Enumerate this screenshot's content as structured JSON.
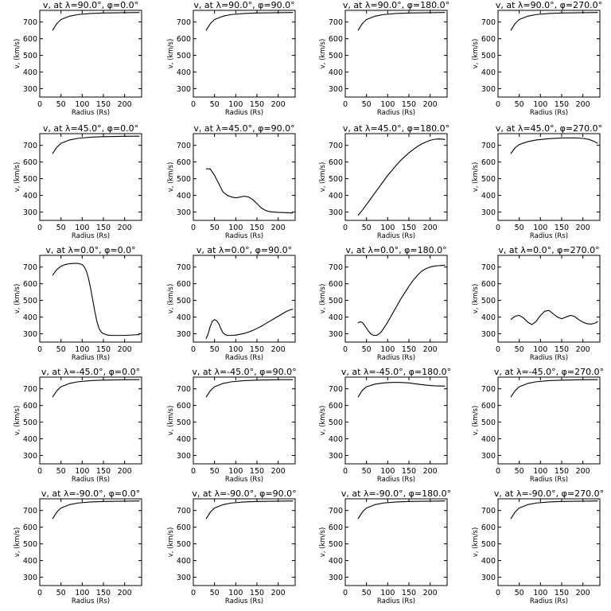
{
  "chart_data": [
    {
      "type": "line",
      "title": "v, at λ=90.0°, φ=0.0°",
      "xlabel": "Radius (Rs)",
      "ylabel": "v, (km/s)",
      "xlim": [
        0,
        240
      ],
      "ylim": [
        250,
        770
      ],
      "xticks": [
        0,
        50,
        100,
        150,
        200
      ],
      "yticks": [
        300,
        400,
        500,
        600,
        700
      ],
      "series": [
        {
          "x": [
            30,
            40,
            50,
            70,
            90,
            120,
            150,
            200,
            235
          ],
          "y": [
            650,
            690,
            715,
            735,
            745,
            751,
            754,
            756,
            757
          ]
        }
      ]
    },
    {
      "type": "line",
      "title": "v, at λ=90.0°, φ=90.0°",
      "xlabel": "Radius (Rs)",
      "ylabel": "v, (km/s)",
      "xlim": [
        0,
        240
      ],
      "ylim": [
        250,
        770
      ],
      "xticks": [
        0,
        50,
        100,
        150,
        200
      ],
      "yticks": [
        300,
        400,
        500,
        600,
        700
      ],
      "series": [
        {
          "x": [
            30,
            40,
            50,
            70,
            90,
            120,
            150,
            200,
            235
          ],
          "y": [
            650,
            690,
            715,
            735,
            745,
            751,
            754,
            756,
            757
          ]
        }
      ]
    },
    {
      "type": "line",
      "title": "v, at λ=90.0°, φ=180.0°",
      "xlabel": "Radius (Rs)",
      "ylabel": "v, (km/s)",
      "xlim": [
        0,
        240
      ],
      "ylim": [
        250,
        770
      ],
      "xticks": [
        0,
        50,
        100,
        150,
        200
      ],
      "yticks": [
        300,
        400,
        500,
        600,
        700
      ],
      "series": [
        {
          "x": [
            30,
            40,
            50,
            70,
            90,
            120,
            150,
            200,
            235
          ],
          "y": [
            650,
            690,
            715,
            735,
            745,
            751,
            754,
            756,
            757
          ]
        }
      ]
    },
    {
      "type": "line",
      "title": "v, at λ=90.0°, φ=270.0°",
      "xlabel": "Radius (Rs)",
      "ylabel": "v, (km/s)",
      "xlim": [
        0,
        240
      ],
      "ylim": [
        250,
        770
      ],
      "xticks": [
        0,
        50,
        100,
        150,
        200
      ],
      "yticks": [
        300,
        400,
        500,
        600,
        700
      ],
      "series": [
        {
          "x": [
            30,
            40,
            50,
            70,
            90,
            120,
            150,
            200,
            235
          ],
          "y": [
            650,
            690,
            715,
            735,
            745,
            751,
            754,
            756,
            757
          ]
        }
      ]
    },
    {
      "type": "line",
      "title": "v, at λ=45.0°, φ=0.0°",
      "xlabel": "Radius (Rs)",
      "ylabel": "v, (km/s)",
      "xlim": [
        0,
        240
      ],
      "ylim": [
        250,
        770
      ],
      "xticks": [
        0,
        50,
        100,
        150,
        200
      ],
      "yticks": [
        300,
        400,
        500,
        600,
        700
      ],
      "series": [
        {
          "x": [
            30,
            40,
            50,
            70,
            90,
            120,
            150,
            200,
            235
          ],
          "y": [
            650,
            688,
            712,
            732,
            742,
            749,
            752,
            754,
            755
          ]
        }
      ]
    },
    {
      "type": "line",
      "title": "v, at λ=45.0°, φ=90.0°",
      "xlabel": "Radius (Rs)",
      "ylabel": "v, (km/s)",
      "xlim": [
        0,
        240
      ],
      "ylim": [
        250,
        770
      ],
      "xticks": [
        0,
        50,
        100,
        150,
        200
      ],
      "yticks": [
        300,
        400,
        500,
        600,
        700
      ],
      "series": [
        {
          "x": [
            30,
            40,
            50,
            60,
            70,
            80,
            90,
            100,
            110,
            120,
            130,
            140,
            150,
            160,
            170,
            180,
            200,
            220,
            235
          ],
          "y": [
            560,
            558,
            520,
            470,
            420,
            400,
            390,
            385,
            390,
            395,
            390,
            375,
            350,
            325,
            310,
            302,
            298,
            296,
            294
          ]
        }
      ]
    },
    {
      "type": "line",
      "title": "v, at λ=45.0°, φ=180.0°",
      "xlabel": "Radius (Rs)",
      "ylabel": "v, (km/s)",
      "xlim": [
        0,
        240
      ],
      "ylim": [
        250,
        770
      ],
      "xticks": [
        0,
        50,
        100,
        150,
        200
      ],
      "yticks": [
        300,
        400,
        500,
        600,
        700
      ],
      "series": [
        {
          "x": [
            30,
            40,
            50,
            60,
            70,
            80,
            90,
            100,
            110,
            120,
            130,
            140,
            150,
            160,
            170,
            180,
            190,
            200,
            210,
            220,
            230,
            235
          ],
          "y": [
            280,
            310,
            345,
            380,
            415,
            450,
            485,
            520,
            550,
            580,
            608,
            632,
            655,
            675,
            693,
            708,
            720,
            730,
            736,
            738,
            737,
            734
          ]
        }
      ]
    },
    {
      "type": "line",
      "title": "v, at λ=45.0°, φ=270.0°",
      "xlabel": "Radius (Rs)",
      "ylabel": "v, (km/s)",
      "xlim": [
        0,
        240
      ],
      "ylim": [
        250,
        770
      ],
      "xticks": [
        0,
        50,
        100,
        150,
        200
      ],
      "yticks": [
        300,
        400,
        500,
        600,
        700
      ],
      "series": [
        {
          "x": [
            30,
            40,
            50,
            70,
            90,
            120,
            150,
            180,
            200,
            215,
            225,
            235
          ],
          "y": [
            650,
            685,
            705,
            722,
            732,
            740,
            744,
            745,
            742,
            735,
            725,
            712
          ]
        }
      ]
    },
    {
      "type": "line",
      "title": "v, at λ=0.0°, φ=0.0°",
      "xlabel": "Radius (Rs)",
      "ylabel": "v, (km/s)",
      "xlim": [
        0,
        240
      ],
      "ylim": [
        250,
        770
      ],
      "xticks": [
        0,
        50,
        100,
        150,
        200
      ],
      "yticks": [
        300,
        400,
        500,
        600,
        700
      ],
      "series": [
        {
          "x": [
            30,
            40,
            50,
            60,
            70,
            80,
            90,
            100,
            105,
            110,
            115,
            120,
            125,
            130,
            135,
            140,
            145,
            150,
            160,
            170,
            180,
            200,
            220,
            235
          ],
          "y": [
            650,
            685,
            705,
            715,
            720,
            722,
            722,
            715,
            700,
            675,
            630,
            570,
            500,
            430,
            370,
            330,
            310,
            300,
            292,
            290,
            290,
            290,
            293,
            295
          ]
        }
      ]
    },
    {
      "type": "line",
      "title": "v, at λ=0.0°, φ=90.0°",
      "xlabel": "Radius (Rs)",
      "ylabel": "v, (km/s)",
      "xlim": [
        0,
        240
      ],
      "ylim": [
        250,
        770
      ],
      "xticks": [
        0,
        50,
        100,
        150,
        200
      ],
      "yticks": [
        300,
        400,
        500,
        600,
        700
      ],
      "series": [
        {
          "x": [
            30,
            35,
            40,
            45,
            50,
            55,
            60,
            65,
            70,
            75,
            80,
            90,
            100,
            110,
            120,
            130,
            140,
            150,
            160,
            170,
            180,
            190,
            200,
            210,
            220,
            230,
            235
          ],
          "y": [
            270,
            300,
            345,
            375,
            385,
            378,
            360,
            330,
            305,
            295,
            290,
            290,
            292,
            297,
            302,
            310,
            320,
            332,
            345,
            360,
            375,
            390,
            405,
            420,
            435,
            445,
            448
          ]
        }
      ]
    },
    {
      "type": "line",
      "title": "v, at λ=0.0°, φ=180.0°",
      "xlabel": "Radius (Rs)",
      "ylabel": "v, (km/s)",
      "xlim": [
        0,
        240
      ],
      "ylim": [
        250,
        770
      ],
      "xticks": [
        0,
        50,
        100,
        150,
        200
      ],
      "yticks": [
        300,
        400,
        500,
        600,
        700
      ],
      "series": [
        {
          "x": [
            30,
            35,
            40,
            45,
            50,
            55,
            60,
            65,
            70,
            75,
            80,
            85,
            90,
            100,
            110,
            120,
            130,
            140,
            150,
            160,
            170,
            180,
            190,
            200,
            210,
            220,
            230,
            235
          ],
          "y": [
            365,
            372,
            368,
            352,
            333,
            315,
            300,
            292,
            290,
            292,
            300,
            312,
            330,
            370,
            415,
            460,
            505,
            545,
            585,
            620,
            650,
            675,
            690,
            700,
            706,
            708,
            710,
            712
          ]
        }
      ]
    },
    {
      "type": "line",
      "title": "v, at λ=0.0°, φ=270.0°",
      "xlabel": "Radius (Rs)",
      "ylabel": "v, (km/s)",
      "xlim": [
        0,
        240
      ],
      "ylim": [
        250,
        770
      ],
      "xticks": [
        0,
        50,
        100,
        150,
        200
      ],
      "yticks": [
        300,
        400,
        500,
        600,
        700
      ],
      "series": [
        {
          "x": [
            30,
            40,
            50,
            60,
            70,
            80,
            90,
            100,
            110,
            120,
            130,
            140,
            150,
            160,
            170,
            180,
            190,
            200,
            210,
            220,
            230,
            235
          ],
          "y": [
            385,
            405,
            410,
            395,
            370,
            355,
            375,
            410,
            435,
            440,
            420,
            400,
            390,
            400,
            410,
            405,
            385,
            370,
            360,
            358,
            365,
            375
          ]
        }
      ]
    },
    {
      "type": "line",
      "title": "v, at λ=-45.0°, φ=0.0°",
      "xlabel": "Radius (Rs)",
      "ylabel": "v, (km/s)",
      "xlim": [
        0,
        240
      ],
      "ylim": [
        250,
        770
      ],
      "xticks": [
        0,
        50,
        100,
        150,
        200
      ],
      "yticks": [
        300,
        400,
        500,
        600,
        700
      ],
      "series": [
        {
          "x": [
            30,
            40,
            50,
            70,
            90,
            120,
            150,
            200,
            235
          ],
          "y": [
            650,
            688,
            712,
            732,
            742,
            749,
            752,
            754,
            755
          ]
        }
      ]
    },
    {
      "type": "line",
      "title": "v, at λ=-45.0°, φ=90.0°",
      "xlabel": "Radius (Rs)",
      "ylabel": "v, (km/s)",
      "xlim": [
        0,
        240
      ],
      "ylim": [
        250,
        770
      ],
      "xticks": [
        0,
        50,
        100,
        150,
        200
      ],
      "yticks": [
        300,
        400,
        500,
        600,
        700
      ],
      "series": [
        {
          "x": [
            30,
            40,
            50,
            70,
            90,
            120,
            150,
            200,
            235
          ],
          "y": [
            650,
            688,
            712,
            732,
            742,
            749,
            752,
            754,
            755
          ]
        }
      ]
    },
    {
      "type": "line",
      "title": "v, at λ=-45.0°, φ=180.0°",
      "xlabel": "Radius (Rs)",
      "ylabel": "v, (km/s)",
      "xlim": [
        0,
        240
      ],
      "ylim": [
        250,
        770
      ],
      "xticks": [
        0,
        50,
        100,
        150,
        200
      ],
      "yticks": [
        300,
        400,
        500,
        600,
        700
      ],
      "series": [
        {
          "x": [
            30,
            40,
            50,
            70,
            90,
            110,
            130,
            150,
            170,
            190,
            210,
            235
          ],
          "y": [
            650,
            690,
            712,
            728,
            735,
            738,
            738,
            735,
            728,
            722,
            718,
            716
          ]
        }
      ]
    },
    {
      "type": "line",
      "title": "v, at λ=-45.0°, φ=270.0°",
      "xlabel": "Radius (Rs)",
      "ylabel": "v, (km/s)",
      "xlim": [
        0,
        240
      ],
      "ylim": [
        250,
        770
      ],
      "xticks": [
        0,
        50,
        100,
        150,
        200
      ],
      "yticks": [
        300,
        400,
        500,
        600,
        700
      ],
      "series": [
        {
          "x": [
            30,
            40,
            50,
            70,
            90,
            120,
            150,
            200,
            235
          ],
          "y": [
            650,
            688,
            712,
            732,
            742,
            749,
            752,
            754,
            755
          ]
        }
      ]
    },
    {
      "type": "line",
      "title": "v, at λ=-90.0°, φ=0.0°",
      "xlabel": "Radius (Rs)",
      "ylabel": "v, (km/s)",
      "xlim": [
        0,
        240
      ],
      "ylim": [
        250,
        770
      ],
      "xticks": [
        0,
        50,
        100,
        150,
        200
      ],
      "yticks": [
        300,
        400,
        500,
        600,
        700
      ],
      "series": [
        {
          "x": [
            30,
            40,
            50,
            70,
            90,
            120,
            150,
            200,
            235
          ],
          "y": [
            650,
            690,
            715,
            735,
            745,
            751,
            754,
            756,
            757
          ]
        }
      ]
    },
    {
      "type": "line",
      "title": "v, at λ=-90.0°, φ=90.0°",
      "xlabel": "Radius (Rs)",
      "ylabel": "v, (km/s)",
      "xlim": [
        0,
        240
      ],
      "ylim": [
        250,
        770
      ],
      "xticks": [
        0,
        50,
        100,
        150,
        200
      ],
      "yticks": [
        300,
        400,
        500,
        600,
        700
      ],
      "series": [
        {
          "x": [
            30,
            40,
            50,
            70,
            90,
            120,
            150,
            200,
            235
          ],
          "y": [
            650,
            690,
            715,
            735,
            745,
            751,
            754,
            756,
            757
          ]
        }
      ]
    },
    {
      "type": "line",
      "title": "v, at λ=-90.0°, φ=180.0°",
      "xlabel": "Radius (Rs)",
      "ylabel": "v, (km/s)",
      "xlim": [
        0,
        240
      ],
      "ylim": [
        250,
        770
      ],
      "xticks": [
        0,
        50,
        100,
        150,
        200
      ],
      "yticks": [
        300,
        400,
        500,
        600,
        700
      ],
      "series": [
        {
          "x": [
            30,
            40,
            50,
            70,
            90,
            120,
            150,
            200,
            235
          ],
          "y": [
            650,
            690,
            715,
            735,
            745,
            751,
            754,
            756,
            757
          ]
        }
      ]
    },
    {
      "type": "line",
      "title": "v, at λ=-90.0°, φ=270.0°",
      "xlabel": "Radius (Rs)",
      "ylabel": "v, (km/s)",
      "xlim": [
        0,
        240
      ],
      "ylim": [
        250,
        770
      ],
      "xticks": [
        0,
        50,
        100,
        150,
        200
      ],
      "yticks": [
        300,
        400,
        500,
        600,
        700
      ],
      "series": [
        {
          "x": [
            30,
            40,
            50,
            70,
            90,
            120,
            150,
            200,
            235
          ],
          "y": [
            650,
            690,
            715,
            735,
            745,
            751,
            754,
            756,
            757
          ]
        }
      ]
    }
  ]
}
